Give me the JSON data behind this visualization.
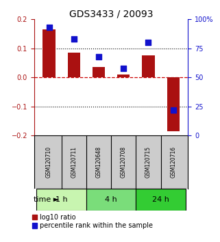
{
  "title": "GDS3433 / 20093",
  "samples": [
    "GSM120710",
    "GSM120711",
    "GSM120648",
    "GSM120708",
    "GSM120715",
    "GSM120716"
  ],
  "log10_ratio": [
    0.165,
    0.085,
    0.037,
    0.01,
    0.075,
    -0.185
  ],
  "percentile_rank": [
    93,
    83,
    68,
    58,
    80,
    22
  ],
  "ylim_left": [
    -0.2,
    0.2
  ],
  "ylim_right": [
    0,
    100
  ],
  "yticks_left": [
    -0.2,
    -0.1,
    0.0,
    0.1,
    0.2
  ],
  "yticks_right": [
    0,
    25,
    50,
    75,
    100
  ],
  "ytick_labels_right": [
    "0",
    "25",
    "50",
    "75",
    "100%"
  ],
  "hlines_dotted": [
    -0.1,
    0.1
  ],
  "zero_line": 0.0,
  "groups": [
    {
      "label": "1 h",
      "indices": [
        0,
        1
      ],
      "color": "#c8f5b0"
    },
    {
      "label": "4 h",
      "indices": [
        2,
        3
      ],
      "color": "#7add7a"
    },
    {
      "label": "24 h",
      "indices": [
        4,
        5
      ],
      "color": "#33cc33"
    }
  ],
  "bar_color": "#aa1111",
  "dot_color": "#1111cc",
  "bar_width": 0.5,
  "dot_size": 28,
  "background_color": "#ffffff",
  "sample_box_color": "#cccccc",
  "zero_line_color": "#cc0000",
  "title_fontsize": 10,
  "tick_fontsize": 7,
  "sample_fontsize": 5.5,
  "legend_fontsize": 7,
  "group_fontsize": 8,
  "time_fontsize": 8,
  "time_label": "time"
}
